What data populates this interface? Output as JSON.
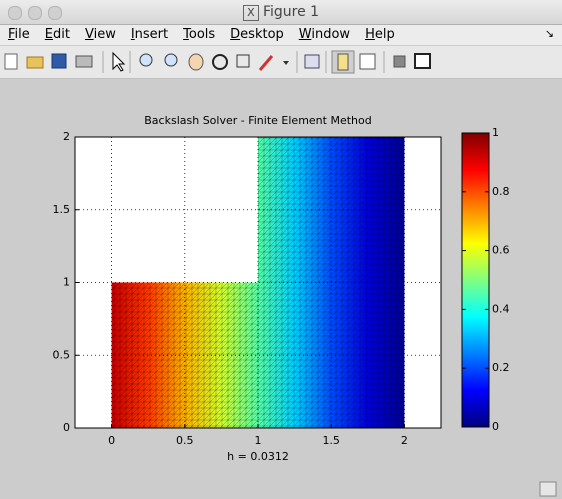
{
  "window": {
    "title": "Figure 1"
  },
  "menu": [
    "File",
    "Edit",
    "View",
    "Insert",
    "Tools",
    "Desktop",
    "Window",
    "Help"
  ],
  "chart_data": {
    "type": "field",
    "title": "Backslash Solver - Finite Element Method",
    "xlabel": "h = 0.0312",
    "xlim": [
      -0.25,
      2.25
    ],
    "xticks": [
      0,
      0.5,
      1,
      1.5,
      2
    ],
    "ylim": [
      0,
      2
    ],
    "yticks": [
      0,
      0.5,
      1,
      1.5,
      2
    ],
    "grid": true,
    "colormap": "jet",
    "domain": {
      "x": [
        0,
        2,
        2,
        1,
        1,
        0
      ],
      "y": [
        0,
        0,
        2,
        2,
        1,
        1
      ]
    },
    "field": {
      "x": [
        0,
        0.25,
        0.5,
        0.75,
        1,
        1.25,
        1.5,
        1.75,
        2
      ],
      "values": [
        0.93,
        0.82,
        0.7,
        0.58,
        0.46,
        0.33,
        0.2,
        0.09,
        0.02
      ]
    },
    "colorbar": {
      "clim": [
        0,
        1
      ],
      "ticks": [
        0,
        0.2,
        0.4,
        0.6,
        0.8,
        1
      ]
    }
  }
}
